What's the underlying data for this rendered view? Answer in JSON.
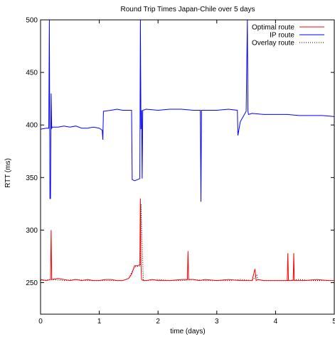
{
  "chart_data": {
    "type": "line",
    "title": "Round Trip Times Japan-Chile over 5 days",
    "xlabel": "time (days)",
    "ylabel": "RTT (ms)",
    "xlim": [
      0,
      5
    ],
    "ylim": [
      220,
      500
    ],
    "xticks": [
      0,
      1,
      2,
      3,
      4,
      5
    ],
    "yticks": [
      250,
      300,
      350,
      400,
      450,
      500
    ],
    "grid": false,
    "legend_position": "top-right",
    "series": [
      {
        "name": "Optimal route",
        "color": "#ff0000",
        "style": "solid",
        "x": [
          0,
          0.1,
          0.17,
          0.18,
          0.19,
          0.3,
          0.4,
          0.5,
          0.6,
          0.7,
          0.8,
          0.9,
          1.0,
          1.1,
          1.2,
          1.3,
          1.4,
          1.5,
          1.55,
          1.6,
          1.65,
          1.69,
          1.7,
          1.71,
          1.72,
          1.75,
          1.8,
          1.9,
          2.0,
          2.2,
          2.4,
          2.5,
          2.51,
          2.52,
          2.6,
          2.7,
          2.8,
          3.0,
          3.2,
          3.4,
          3.6,
          3.65,
          3.66,
          3.67,
          3.7,
          3.8,
          4.0,
          4.2,
          4.21,
          4.22,
          4.3,
          4.31,
          4.32,
          4.5,
          4.7,
          4.9,
          5.0
        ],
        "y": [
          253,
          252,
          253,
          300,
          253,
          254,
          253,
          252,
          253,
          252,
          253,
          252,
          252,
          253,
          253,
          252,
          252,
          254,
          258,
          266,
          266,
          267,
          330,
          268,
          253,
          252,
          252,
          253,
          252,
          252,
          253,
          253,
          280,
          253,
          253,
          252,
          253,
          252,
          253,
          252,
          252,
          263,
          258,
          252,
          253,
          252,
          252,
          252,
          278,
          252,
          252,
          278,
          252,
          252,
          253,
          252,
          252
        ]
      },
      {
        "name": "IP route",
        "color": "#0000ff",
        "style": "solid",
        "x": [
          0,
          0.1,
          0.14,
          0.15,
          0.16,
          0.17,
          0.18,
          0.19,
          0.2,
          0.3,
          0.4,
          0.5,
          0.6,
          0.7,
          0.8,
          0.9,
          1.0,
          1.05,
          1.06,
          1.07,
          1.2,
          1.3,
          1.4,
          1.5,
          1.55,
          1.56,
          1.6,
          1.65,
          1.69,
          1.7,
          1.71,
          1.72,
          1.73,
          1.74,
          1.8,
          2.0,
          2.2,
          2.4,
          2.6,
          2.72,
          2.73,
          2.74,
          2.8,
          3.0,
          3.2,
          3.35,
          3.36,
          3.4,
          3.5,
          3.52,
          3.53,
          3.54,
          3.6,
          3.8,
          4.0,
          4.2,
          4.4,
          4.6,
          4.8,
          5.0
        ],
        "y": [
          396,
          397,
          397,
          500,
          330,
          330,
          430,
          397,
          398,
          398,
          399,
          398,
          399,
          397,
          397,
          398,
          397,
          395,
          386,
          413,
          414,
          415,
          414,
          414,
          414,
          348,
          347,
          348,
          349,
          500,
          396,
          414,
          349,
          414,
          415,
          414,
          415,
          415,
          414,
          414,
          327,
          414,
          414,
          414,
          415,
          414,
          390,
          403,
          413,
          500,
          413,
          410,
          411,
          410,
          410,
          410,
          409,
          409,
          409,
          408
        ]
      },
      {
        "name": "Overlay route",
        "color": "#000000",
        "style": "dotted",
        "x": [
          0,
          0.2,
          0.4,
          0.6,
          0.8,
          1.0,
          1.2,
          1.4,
          1.5,
          1.6,
          1.7,
          1.71,
          1.75,
          1.8,
          2.0,
          2.2,
          2.4,
          2.6,
          2.8,
          3.0,
          3.2,
          3.4,
          3.6,
          3.68,
          3.7,
          3.8,
          4.0,
          4.2,
          4.4,
          4.6,
          4.8,
          5.0
        ],
        "y": [
          252,
          253,
          252,
          253,
          252,
          252,
          252,
          252,
          254,
          265,
          266,
          325,
          252,
          252,
          253,
          252,
          252,
          253,
          252,
          252,
          252,
          253,
          252,
          257,
          253,
          252,
          252,
          252,
          253,
          252,
          252,
          252
        ]
      }
    ]
  }
}
